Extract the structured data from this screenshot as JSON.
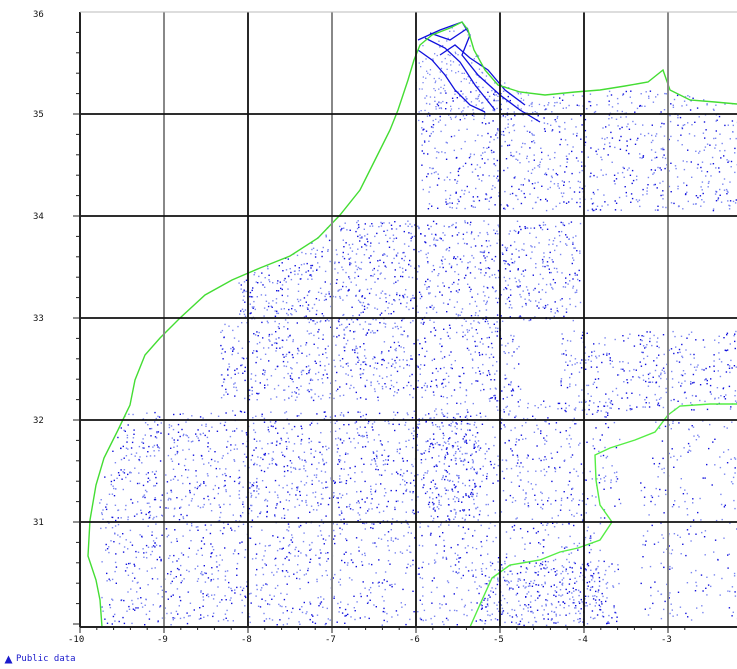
{
  "map": {
    "lon_range": [
      -10,
      -2.8
    ],
    "lat_range": [
      29.2,
      36
    ],
    "lon_ticks": [
      "-10",
      "-9",
      "-8",
      "-7",
      "-6",
      "-5",
      "-4",
      "-3"
    ],
    "lat_ticks": [
      "36",
      "35",
      "34",
      "33",
      "32",
      "31"
    ],
    "colors": {
      "coastline": "#44dd33",
      "border": "#55ee44",
      "data_dense": "#1010dd",
      "data_sparse": "#7a86f0",
      "grid": "#111111",
      "grid_gray": "#888888",
      "frame": "#222222"
    }
  },
  "legend": {
    "icon": "triangle-icon",
    "label": "Public data"
  }
}
